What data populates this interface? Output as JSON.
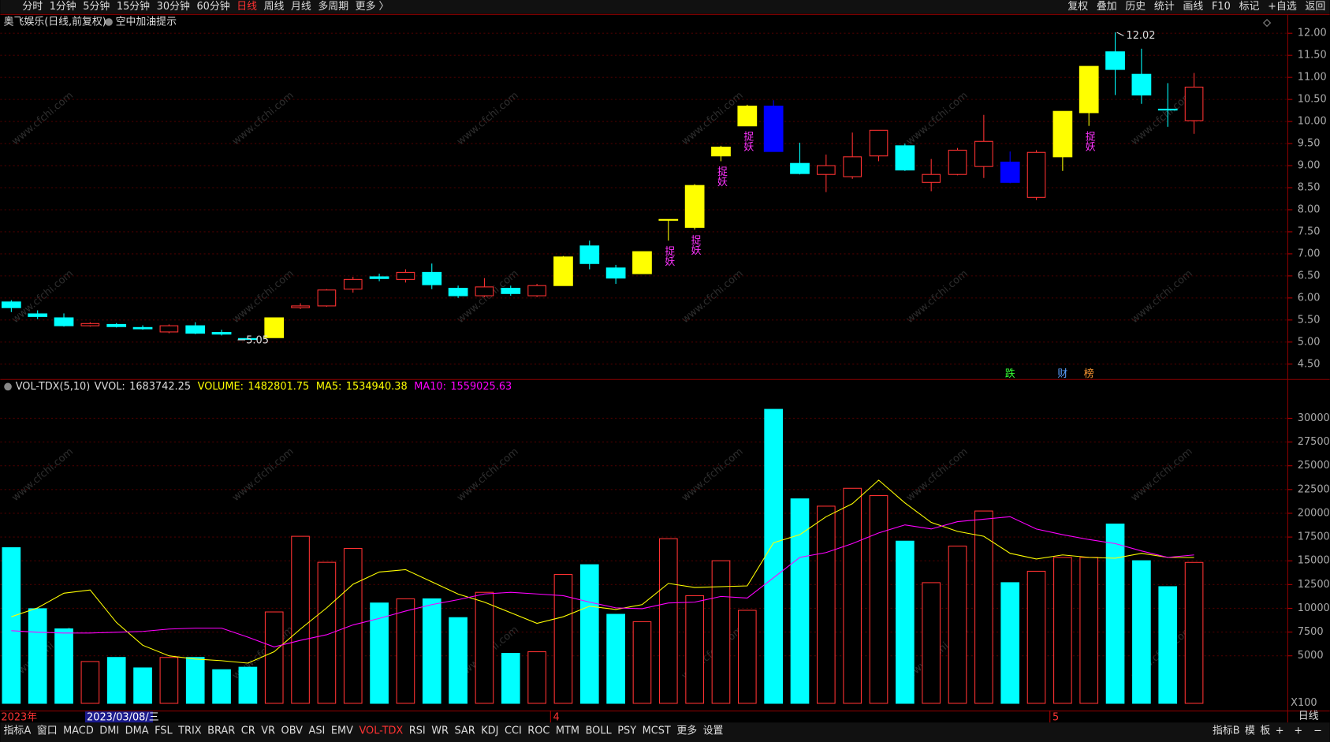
{
  "toolbar": {
    "left": [
      "分时",
      "1分钟",
      "5分钟",
      "15分钟",
      "30分钟",
      "60分钟",
      "日线",
      "周线",
      "月线",
      "多周期",
      "更多 〉"
    ],
    "active": "日线",
    "right": [
      "复权",
      "叠加",
      "历史",
      "统计",
      "画线",
      "F10",
      "标记",
      "+自选",
      "返回"
    ]
  },
  "header": {
    "title": "奥飞娱乐(日线,前复权)",
    "tip": "空中加油提示"
  },
  "watermark": "www.cfchi.com",
  "chart_data": [
    {
      "type": "candlestick",
      "open": [
        5.91,
        5.64,
        5.55,
        5.37,
        5.4,
        5.33,
        5.23,
        5.37,
        5.22,
        5.08,
        5.1,
        5.78,
        5.82,
        6.2,
        6.48,
        6.42,
        6.58,
        6.22,
        6.05,
        6.22,
        6.05,
        6.28,
        7.18,
        6.68,
        6.55,
        7.78,
        7.6,
        9.22,
        9.9,
        10.35,
        9.05,
        8.8,
        8.75,
        9.22,
        9.45,
        8.62,
        8.8,
        8.98,
        9.08,
        8.28,
        9.2,
        10.2,
        11.58,
        11.07,
        10.28,
        10.02
      ],
      "close": [
        5.78,
        5.58,
        5.37,
        5.42,
        5.35,
        5.3,
        5.37,
        5.2,
        5.18,
        5.06,
        5.55,
        5.82,
        6.18,
        6.42,
        6.44,
        6.58,
        6.3,
        6.05,
        6.25,
        6.1,
        6.28,
        6.93,
        6.78,
        6.45,
        7.05,
        7.78,
        8.55,
        9.42,
        10.35,
        9.32,
        8.82,
        9.0,
        9.2,
        9.8,
        8.9,
        8.8,
        9.35,
        9.55,
        8.62,
        9.3,
        10.23,
        11.25,
        11.18,
        10.6,
        10.26,
        10.78
      ],
      "high": [
        5.95,
        5.72,
        5.65,
        5.45,
        5.43,
        5.38,
        5.4,
        5.45,
        5.28,
        5.12,
        5.55,
        5.88,
        6.2,
        6.48,
        6.55,
        6.65,
        6.78,
        6.28,
        6.45,
        6.28,
        6.32,
        6.95,
        7.3,
        6.75,
        7.05,
        7.78,
        8.58,
        9.45,
        10.38,
        10.48,
        9.52,
        9.25,
        9.75,
        9.8,
        9.5,
        9.15,
        9.4,
        10.15,
        9.32,
        9.35,
        10.23,
        11.25,
        12.02,
        11.65,
        10.87,
        11.1
      ],
      "low": [
        5.68,
        5.52,
        5.35,
        5.35,
        5.33,
        5.28,
        5.2,
        5.18,
        5.15,
        5.05,
        5.1,
        5.75,
        5.8,
        6.12,
        6.38,
        6.35,
        6.2,
        6.0,
        6.02,
        6.05,
        6.02,
        6.28,
        6.65,
        6.32,
        6.55,
        7.3,
        7.55,
        9.1,
        9.9,
        9.32,
        8.8,
        8.4,
        8.7,
        9.1,
        8.88,
        8.42,
        8.78,
        8.72,
        8.6,
        8.22,
        8.88,
        9.9,
        10.6,
        10.4,
        9.88,
        9.72
      ],
      "colors": [
        "#00ffff",
        "#00ffff",
        "#00ffff",
        "#ff3232",
        "#00ffff",
        "#00ffff",
        "#ff3232",
        "#00ffff",
        "#00ffff",
        "#00ffff",
        "#ffff00",
        "#ff3232",
        "#ff3232",
        "#ff3232",
        "#00ffff",
        "#ff3232",
        "#00ffff",
        "#00ffff",
        "#ff3232",
        "#00ffff",
        "#ff3232",
        "#ffff00",
        "#00ffff",
        "#00ffff",
        "#ffff00",
        "#ffff00",
        "#ffff00",
        "#ffff00",
        "#ffff00",
        "#0000ff",
        "#00ffff",
        "#ff3232",
        "#ff3232",
        "#ff3232",
        "#00ffff",
        "#ff3232",
        "#ff3232",
        "#ff3232",
        "#0000ff",
        "#ff3232",
        "#ffff00",
        "#ffff00",
        "#00ffff",
        "#00ffff",
        "#00ffff",
        "#ff3232"
      ],
      "up_color": "#ff3232",
      "hollow_up": true,
      "signals": [
        null,
        null,
        null,
        null,
        null,
        null,
        null,
        null,
        null,
        null,
        null,
        null,
        null,
        null,
        null,
        null,
        null,
        null,
        null,
        null,
        null,
        null,
        null,
        null,
        null,
        "捉妖",
        "捉妖",
        "捉妖",
        "捉妖",
        null,
        null,
        null,
        null,
        null,
        null,
        null,
        null,
        null,
        null,
        null,
        null,
        "捉妖",
        null,
        null,
        null,
        null
      ],
      "events": [
        null,
        null,
        null,
        null,
        null,
        null,
        null,
        null,
        null,
        null,
        null,
        null,
        null,
        null,
        null,
        null,
        null,
        null,
        null,
        null,
        null,
        null,
        null,
        null,
        null,
        null,
        null,
        null,
        null,
        null,
        null,
        null,
        null,
        null,
        null,
        null,
        null,
        null,
        {
          "label": "跌",
          "color": "#33ff33"
        },
        null,
        {
          "label": "财",
          "color": "#5aa0ff"
        },
        {
          "label": "榜",
          "color": "#ff9933"
        },
        null,
        null,
        null,
        null
      ],
      "annotations": [
        {
          "label": "5.05",
          "value": 5.05
        },
        {
          "label": "12.02",
          "value": 12.02
        }
      ],
      "ylim": [
        4.2,
        12.37
      ],
      "yticks": [
        {
          "value": 4.5,
          "label": "4.50"
        },
        {
          "value": 5,
          "label": "5.00"
        },
        {
          "value": 5.5,
          "label": "5.50"
        },
        {
          "value": 6,
          "label": "6.00"
        },
        {
          "value": 6.5,
          "label": "6.50"
        },
        {
          "value": 7,
          "label": "7.00"
        },
        {
          "value": 7.5,
          "label": "7.50"
        },
        {
          "value": 8,
          "label": "8.00"
        },
        {
          "value": 8.5,
          "label": "8.50"
        },
        {
          "value": 9,
          "label": "9.00"
        },
        {
          "value": 9.5,
          "label": "9.50"
        },
        {
          "value": 10,
          "label": "10.00"
        },
        {
          "value": 10.5,
          "label": "10.50"
        },
        {
          "value": 11,
          "label": "11.00"
        },
        {
          "value": 11.5,
          "label": "11.50"
        },
        {
          "value": 12,
          "label": "12.00"
        }
      ],
      "grid": true
    },
    {
      "type": "bar",
      "indicator": "VOL-TDX(5,10)",
      "readout": {
        "label": "VVOL:",
        "value": "1683742.25"
      },
      "categories": [
        "2023年",
        null,
        null,
        null,
        null,
        null,
        null,
        null,
        null,
        null,
        null,
        null,
        null,
        null,
        null,
        null,
        null,
        null,
        null,
        null,
        null,
        "4",
        null,
        null,
        null,
        null,
        null,
        null,
        null,
        null,
        null,
        null,
        null,
        null,
        null,
        null,
        null,
        null,
        null,
        null,
        "5",
        null,
        null,
        null,
        null,
        null
      ],
      "cursor_date": "2023/03/08/三",
      "series": [
        {
          "name": "VOLUME:",
          "readout": "1482801.75",
          "color": "#ffff00",
          "values": [
            16380,
            9960,
            7840,
            4400,
            4830,
            3730,
            4830,
            4830,
            3540,
            3800,
            9620,
            17580,
            14840,
            16300,
            10560,
            11000,
            11000,
            9020,
            11680,
            5260,
            5430,
            13560,
            14590,
            9370,
            8590,
            17330,
            11330,
            15010,
            9790,
            30940,
            21520,
            20750,
            22630,
            21860,
            17070,
            12700,
            16550,
            20240,
            12700,
            13900,
            15360,
            15360,
            18870,
            15010,
            12280,
            14828
          ],
          "colors": [
            "#00ffff",
            "#00ffff",
            "#00ffff",
            "#ff3232",
            "#00ffff",
            "#00ffff",
            "#ff3232",
            "#00ffff",
            "#00ffff",
            "#00ffff",
            "#ff3232",
            "#ff3232",
            "#ff3232",
            "#ff3232",
            "#00ffff",
            "#ff3232",
            "#00ffff",
            "#00ffff",
            "#ff3232",
            "#00ffff",
            "#ff3232",
            "#ff3232",
            "#00ffff",
            "#00ffff",
            "#ff3232",
            "#ff3232",
            "#ff3232",
            "#ff3232",
            "#ff3232",
            "#00ffff",
            "#00ffff",
            "#ff3232",
            "#ff3232",
            "#ff3232",
            "#00ffff",
            "#ff3232",
            "#ff3232",
            "#ff3232",
            "#00ffff",
            "#ff3232",
            "#ff3232",
            "#ff3232",
            "#00ffff",
            "#00ffff",
            "#00ffff",
            "#ff3232"
          ]
        },
        {
          "name": "MA5:",
          "readout": "1534940.38",
          "color": "#ffff00",
          "values": [
            9110,
            10050,
            11590,
            11930,
            8510,
            6110,
            5000,
            4660,
            4490,
            4230,
            5430,
            7820,
            10050,
            12530,
            13820,
            14070,
            12790,
            11500,
            10650,
            9540,
            8420,
            9110,
            10220,
            9880,
            10390,
            12620,
            12190,
            12280,
            12360,
            16900,
            17750,
            19640,
            21010,
            23490,
            21090,
            19040,
            18100,
            17580,
            15790,
            15190,
            15620,
            15360,
            15270,
            15790,
            15360,
            15350
          ]
        },
        {
          "name": "MA10:",
          "readout": "1559025.63",
          "color": "#ff00ff",
          "values": [
            7650,
            7480,
            7400,
            7400,
            7480,
            7570,
            7820,
            7910,
            7910,
            6970,
            5940,
            6630,
            7220,
            8250,
            8940,
            9710,
            10390,
            10910,
            11510,
            11680,
            11510,
            11330,
            10650,
            10050,
            9960,
            10560,
            10650,
            11250,
            11080,
            13220,
            15360,
            15870,
            16810,
            17930,
            18780,
            18350,
            19120,
            19380,
            19640,
            18350,
            17750,
            17240,
            16810,
            16040,
            15360,
            15620
          ]
        }
      ],
      "unit_label": "X100",
      "ylim": [
        0,
        32700
      ],
      "yticks": [
        5000,
        7500,
        10000,
        12500,
        15000,
        17500,
        20000,
        22500,
        25000,
        27500,
        30000
      ],
      "grid": true
    }
  ],
  "bottom_bar": {
    "left": [
      "指标A",
      "窗口",
      "MACD",
      "DMI",
      "DMA",
      "FSL",
      "TRIX",
      "BRAR",
      "CR",
      "VR",
      "OBV",
      "ASI",
      "EMV",
      "VOL-TDX",
      "RSI",
      "WR",
      "SAR",
      "KDJ",
      "CCI",
      "ROC",
      "MTM",
      "BOLL",
      "PSY",
      "MCST",
      "更多",
      "设置"
    ],
    "active": "VOL-TDX",
    "right": [
      "指标B",
      "模",
      "板",
      "+"
    ]
  },
  "side": {
    "period": "日线",
    "zoom": [
      "+",
      "−"
    ]
  }
}
